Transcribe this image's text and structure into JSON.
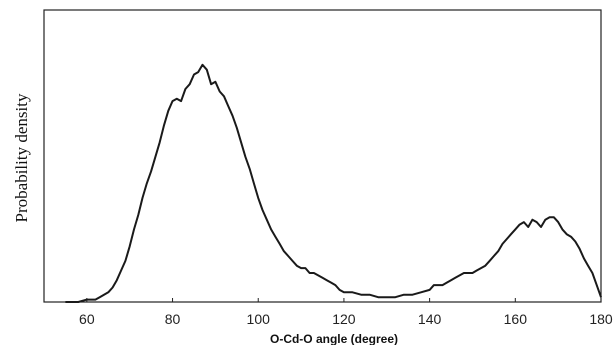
{
  "chart_data": {
    "type": "line",
    "xlabel": "O-Cd-O angle (degree)",
    "ylabel": "Probability density",
    "xlim": [
      50,
      180
    ],
    "ylim": [
      0,
      1
    ],
    "xticks": [
      60,
      80,
      100,
      120,
      140,
      160,
      180
    ],
    "grid": false,
    "legend": "none",
    "line_color": "#1a1a1a",
    "series": [
      {
        "x": [
          55,
          58,
          60,
          62,
          63,
          64,
          65,
          66,
          67,
          68,
          69,
          70,
          71,
          72,
          73,
          74,
          75,
          76,
          77,
          78,
          79,
          80,
          81,
          82,
          83,
          84,
          85,
          86,
          87,
          88,
          89,
          90,
          91,
          92,
          93,
          94,
          95,
          96,
          97,
          98,
          99,
          100,
          101,
          102,
          103,
          104,
          105,
          106,
          107,
          108,
          109,
          110,
          111,
          112,
          113,
          114,
          115,
          116,
          117,
          118,
          119,
          120,
          122,
          124,
          126,
          128,
          130,
          132,
          134,
          136,
          138,
          140,
          141,
          142,
          143,
          144,
          145,
          146,
          147,
          148,
          149,
          150,
          151,
          152,
          153,
          154,
          155,
          156,
          157,
          158,
          159,
          160,
          161,
          162,
          163,
          164,
          165,
          166,
          167,
          168,
          169,
          170,
          171,
          172,
          173,
          174,
          175,
          176,
          177,
          178,
          179,
          180
        ],
        "values": [
          0.0,
          0.0,
          0.01,
          0.01,
          0.02,
          0.03,
          0.04,
          0.06,
          0.09,
          0.13,
          0.17,
          0.23,
          0.3,
          0.36,
          0.43,
          0.49,
          0.54,
          0.6,
          0.66,
          0.73,
          0.79,
          0.83,
          0.84,
          0.83,
          0.88,
          0.9,
          0.94,
          0.95,
          0.98,
          0.96,
          0.9,
          0.91,
          0.87,
          0.85,
          0.81,
          0.77,
          0.72,
          0.66,
          0.6,
          0.55,
          0.49,
          0.43,
          0.38,
          0.34,
          0.3,
          0.27,
          0.24,
          0.21,
          0.19,
          0.17,
          0.15,
          0.14,
          0.14,
          0.12,
          0.12,
          0.11,
          0.1,
          0.09,
          0.08,
          0.07,
          0.05,
          0.04,
          0.04,
          0.03,
          0.03,
          0.02,
          0.02,
          0.02,
          0.03,
          0.03,
          0.04,
          0.05,
          0.07,
          0.07,
          0.07,
          0.08,
          0.09,
          0.1,
          0.11,
          0.12,
          0.12,
          0.12,
          0.13,
          0.14,
          0.15,
          0.17,
          0.19,
          0.21,
          0.24,
          0.26,
          0.28,
          0.3,
          0.32,
          0.33,
          0.31,
          0.34,
          0.33,
          0.31,
          0.34,
          0.35,
          0.35,
          0.33,
          0.3,
          0.28,
          0.27,
          0.25,
          0.22,
          0.18,
          0.15,
          0.12,
          0.07,
          0.02
        ]
      }
    ]
  }
}
